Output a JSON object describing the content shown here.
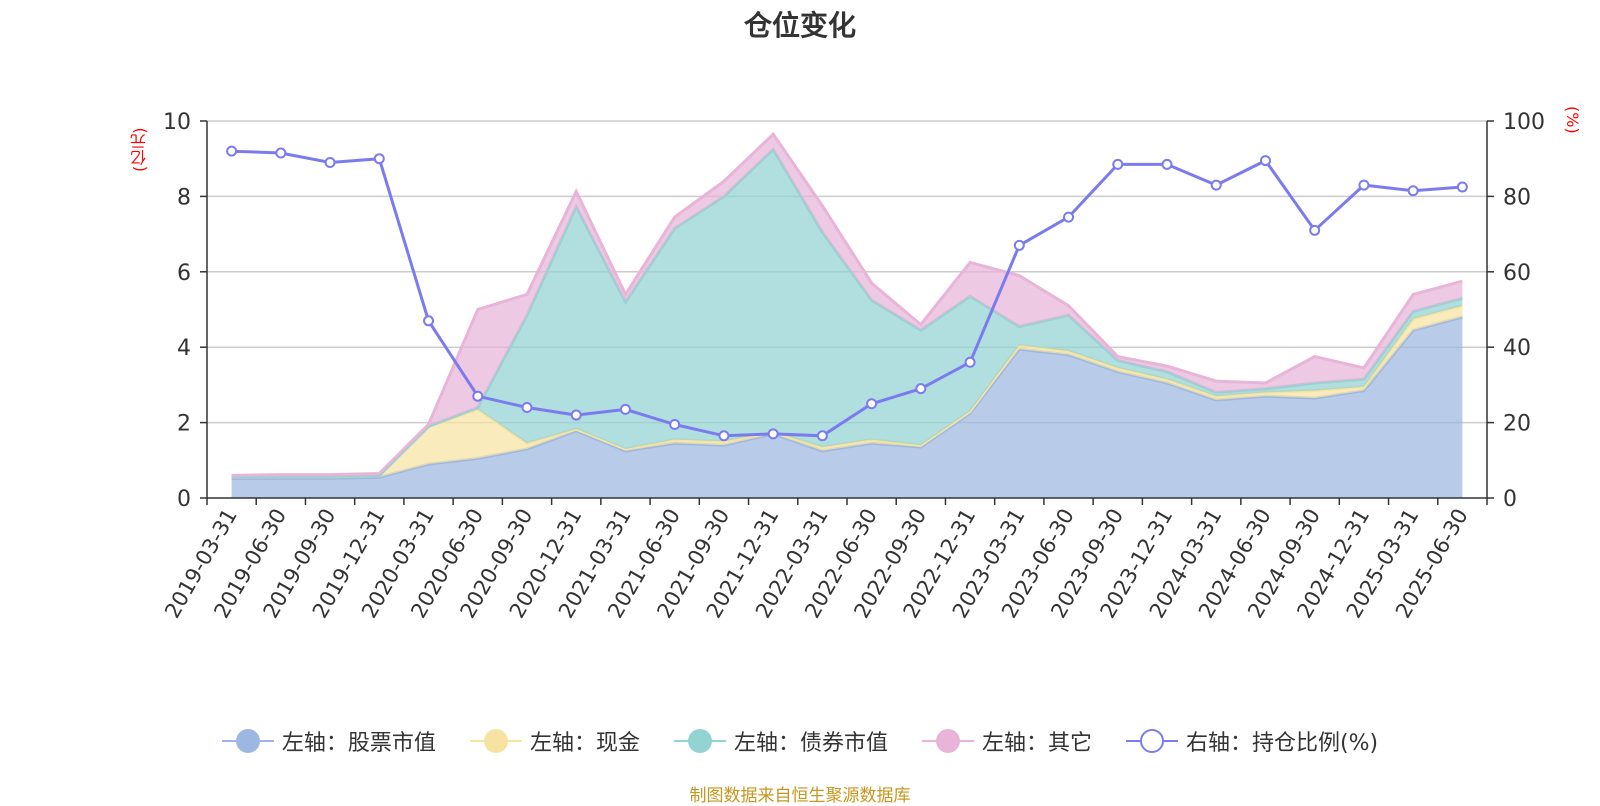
{
  "title": "仓位变化",
  "source": "制图数据来自恒生聚源数据库",
  "left_unit": "(亿元)",
  "right_unit": "(%)",
  "chart_data": {
    "type": "area",
    "title": "仓位变化",
    "categories": [
      "2019-03-31",
      "2019-06-30",
      "2019-09-30",
      "2019-12-31",
      "2020-03-31",
      "2020-06-30",
      "2020-09-30",
      "2020-12-31",
      "2021-03-31",
      "2021-06-30",
      "2021-09-30",
      "2021-12-31",
      "2022-03-31",
      "2022-06-30",
      "2022-09-30",
      "2022-12-31",
      "2023-03-31",
      "2023-06-30",
      "2023-09-30",
      "2023-12-31",
      "2024-03-31",
      "2024-06-30",
      "2024-09-30",
      "2024-12-31",
      "2025-03-31",
      "2025-06-30"
    ],
    "left_axis": {
      "label": "(亿元)",
      "min": 0,
      "max": 10,
      "ticks": [
        0,
        2,
        4,
        6,
        8,
        10
      ]
    },
    "right_axis": {
      "label": "(%)",
      "min": 0,
      "max": 100,
      "ticks": [
        0,
        20,
        40,
        60,
        80,
        100
      ]
    },
    "stacked": true,
    "grid": true,
    "legend_position": "bottom",
    "series": [
      {
        "name": "左轴：股票市值",
        "axis": "left",
        "type": "area",
        "color": "#9db8e0",
        "values": [
          0.52,
          0.52,
          0.52,
          0.55,
          0.9,
          1.05,
          1.3,
          1.78,
          1.25,
          1.45,
          1.4,
          1.7,
          1.25,
          1.45,
          1.35,
          2.25,
          3.95,
          3.8,
          3.35,
          3.05,
          2.6,
          2.7,
          2.65,
          2.85,
          4.45,
          4.8
        ]
      },
      {
        "name": "左轴：现金",
        "axis": "left",
        "type": "area",
        "color": "#f7e3a1",
        "values": [
          0.05,
          0.05,
          0.05,
          0.05,
          1.0,
          1.3,
          0.15,
          0.05,
          0.05,
          0.1,
          0.1,
          0.05,
          0.1,
          0.1,
          0.05,
          0.05,
          0.1,
          0.1,
          0.1,
          0.1,
          0.1,
          0.1,
          0.2,
          0.1,
          0.3,
          0.3
        ]
      },
      {
        "name": "左轴：债券市值",
        "axis": "left",
        "type": "area",
        "color": "#93d3d2",
        "values": [
          0,
          0,
          0,
          0,
          0,
          0.05,
          3.4,
          5.9,
          3.9,
          5.6,
          6.5,
          7.5,
          5.7,
          3.7,
          3.05,
          3.05,
          0.5,
          0.95,
          0.2,
          0.2,
          0.1,
          0.1,
          0.2,
          0.2,
          0.2,
          0.2
        ]
      },
      {
        "name": "左轴：其它",
        "axis": "left",
        "type": "area",
        "color": "#e8b4d8",
        "values": [
          0.03,
          0.05,
          0.05,
          0.05,
          0.05,
          2.6,
          0.55,
          0.4,
          0.2,
          0.3,
          0.4,
          0.4,
          0.7,
          0.45,
          0.15,
          0.9,
          1.35,
          0.25,
          0.1,
          0.15,
          0.3,
          0.15,
          0.7,
          0.3,
          0.45,
          0.45
        ]
      },
      {
        "name": "右轴：持仓比例(%)",
        "axis": "right",
        "type": "line",
        "color": "#7b7bf0",
        "values": [
          92,
          91.5,
          89,
          90,
          47,
          27,
          24,
          22,
          23.5,
          19.5,
          16.5,
          17,
          16.5,
          25,
          29,
          36,
          67,
          74.5,
          88.5,
          88.5,
          83,
          89.5,
          71,
          83,
          81.5,
          82.5
        ]
      }
    ]
  }
}
